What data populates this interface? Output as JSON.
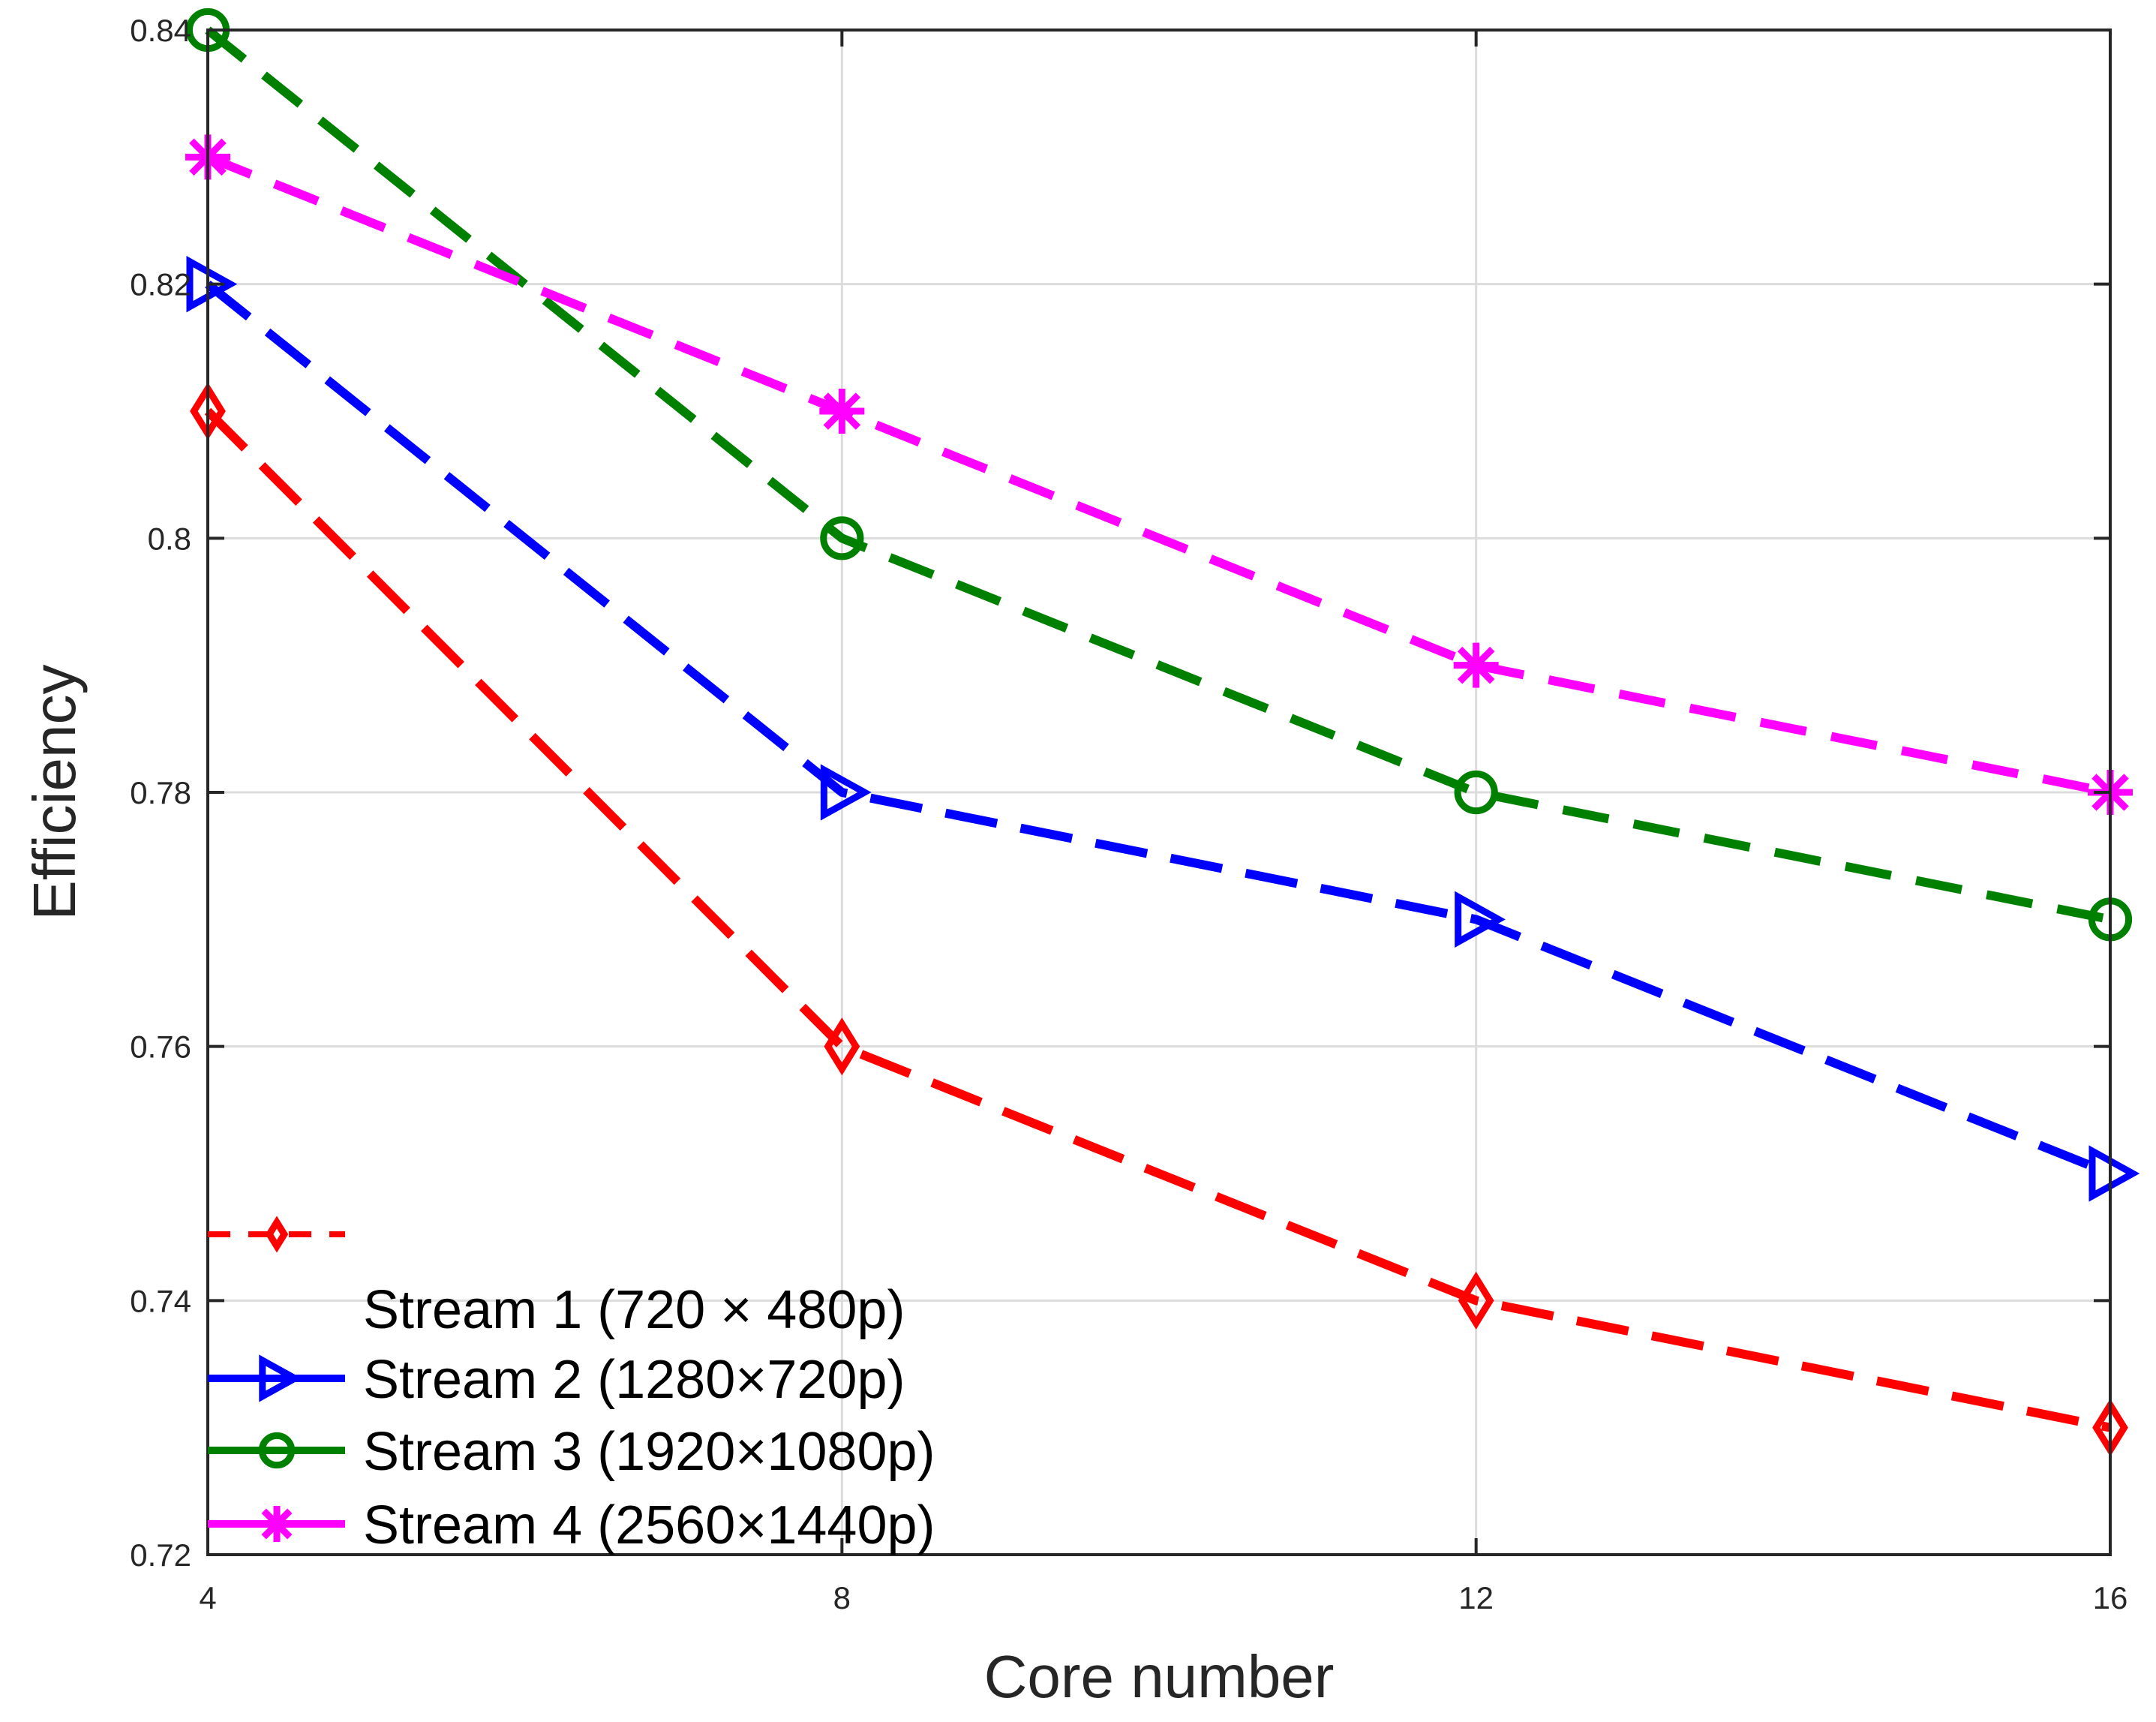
{
  "chart_data": {
    "type": "line",
    "xlabel": "Core number",
    "ylabel": "Efficiency",
    "x": [
      4,
      8,
      12,
      16
    ],
    "xlim": [
      4,
      16
    ],
    "ylim": [
      0.72,
      0.84
    ],
    "xticks": [
      4,
      8,
      12,
      16
    ],
    "xtick_labels": [
      "4",
      "8",
      "12",
      "16"
    ],
    "yticks": [
      0.72,
      0.74,
      0.76,
      0.78,
      0.8,
      0.82,
      0.84
    ],
    "ytick_labels": [
      "0.72",
      "0.74",
      "0.76",
      "0.78",
      "0.8",
      "0.82",
      "0.84"
    ],
    "grid": true,
    "legend_position": "bottom-left",
    "series": [
      {
        "name": "Stream 1 (720 × 480p)",
        "color": "#ff0000",
        "marker": "diamond",
        "values": [
          0.81,
          0.76,
          0.74,
          0.73
        ]
      },
      {
        "name": "Stream 2 (1280×720p)",
        "color": "#0000ff",
        "marker": "triangle-right",
        "values": [
          0.82,
          0.78,
          0.77,
          0.75
        ]
      },
      {
        "name": "Stream 3 (1920×1080p)",
        "color": "#008000",
        "marker": "circle",
        "values": [
          0.84,
          0.8,
          0.78,
          0.77
        ]
      },
      {
        "name": "Stream 4 (2560×1440p)",
        "color": "#ff00ff",
        "marker": "asterisk",
        "values": [
          0.83,
          0.81,
          0.79,
          0.78
        ]
      }
    ]
  }
}
